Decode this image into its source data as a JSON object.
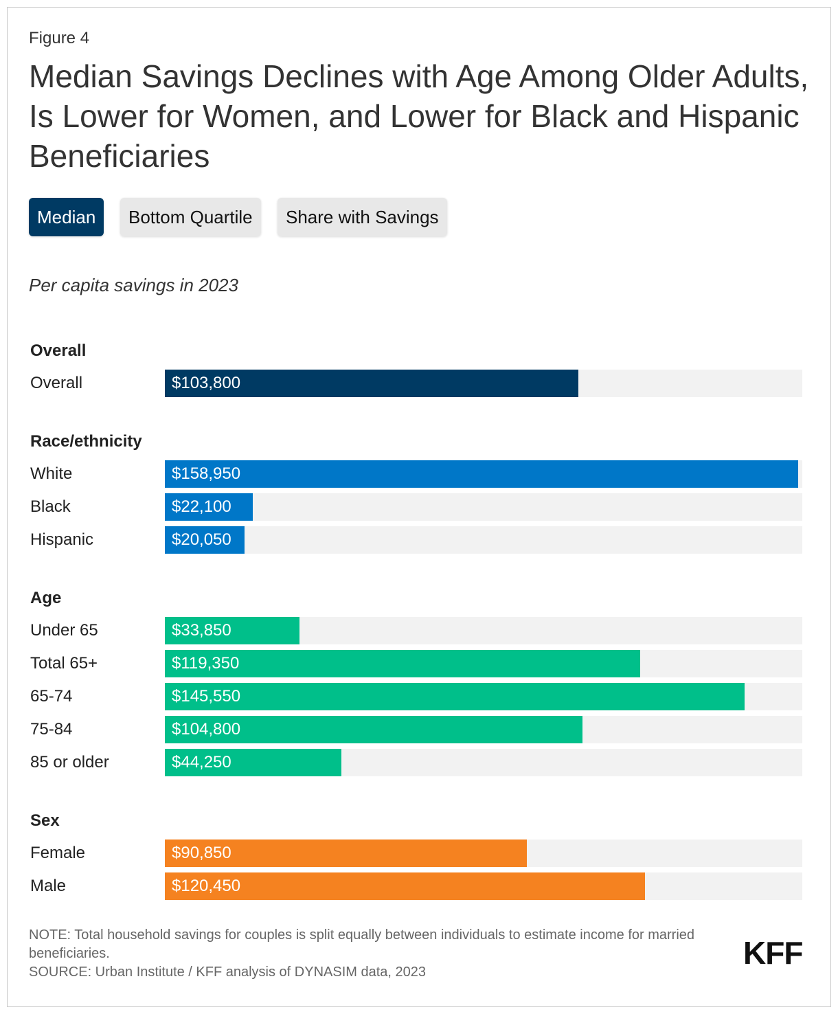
{
  "figure_label": "Figure 4",
  "title": "Median Savings Declines with Age Among Older Adults, Is Lower for Women, and Lower for Black and Hispanic Beneficiaries",
  "buttons": [
    "Median",
    "Bottom Quartile",
    "Share with Savings"
  ],
  "chart_data": {
    "type": "bar",
    "orientation": "horizontal",
    "subtitle": "Per capita savings in 2023",
    "xlim": [
      0,
      160000
    ],
    "groups": [
      {
        "name": "Overall",
        "color": "#003a63",
        "categories": [
          "Overall"
        ],
        "values": [
          103800
        ],
        "value_labels": [
          "$103,800"
        ]
      },
      {
        "name": "Race/ethnicity",
        "color": "#0077c8",
        "categories": [
          "White",
          "Black",
          "Hispanic"
        ],
        "values": [
          158950,
          22100,
          20050
        ],
        "value_labels": [
          "$158,950",
          "$22,100",
          "$20,050"
        ]
      },
      {
        "name": "Age",
        "color": "#00bf8a",
        "categories": [
          "Under 65",
          "Total 65+",
          "65-74",
          "75-84",
          "85 or older"
        ],
        "values": [
          33850,
          119350,
          145550,
          104800,
          44250
        ],
        "value_labels": [
          "$33,850",
          "$119,350",
          "$145,550",
          "$104,800",
          "$44,250"
        ]
      },
      {
        "name": "Sex",
        "color": "#f58220",
        "categories": [
          "Female",
          "Male"
        ],
        "values": [
          90850,
          120450
        ],
        "value_labels": [
          "$90,850",
          "$120,450"
        ]
      }
    ]
  },
  "notes": [
    "NOTE: Total household savings for couples is split equally between individuals to estimate income for married beneficiaries.",
    "SOURCE: Urban Institute / KFF analysis of DYNASIM data, 2023"
  ],
  "logo": "KFF"
}
